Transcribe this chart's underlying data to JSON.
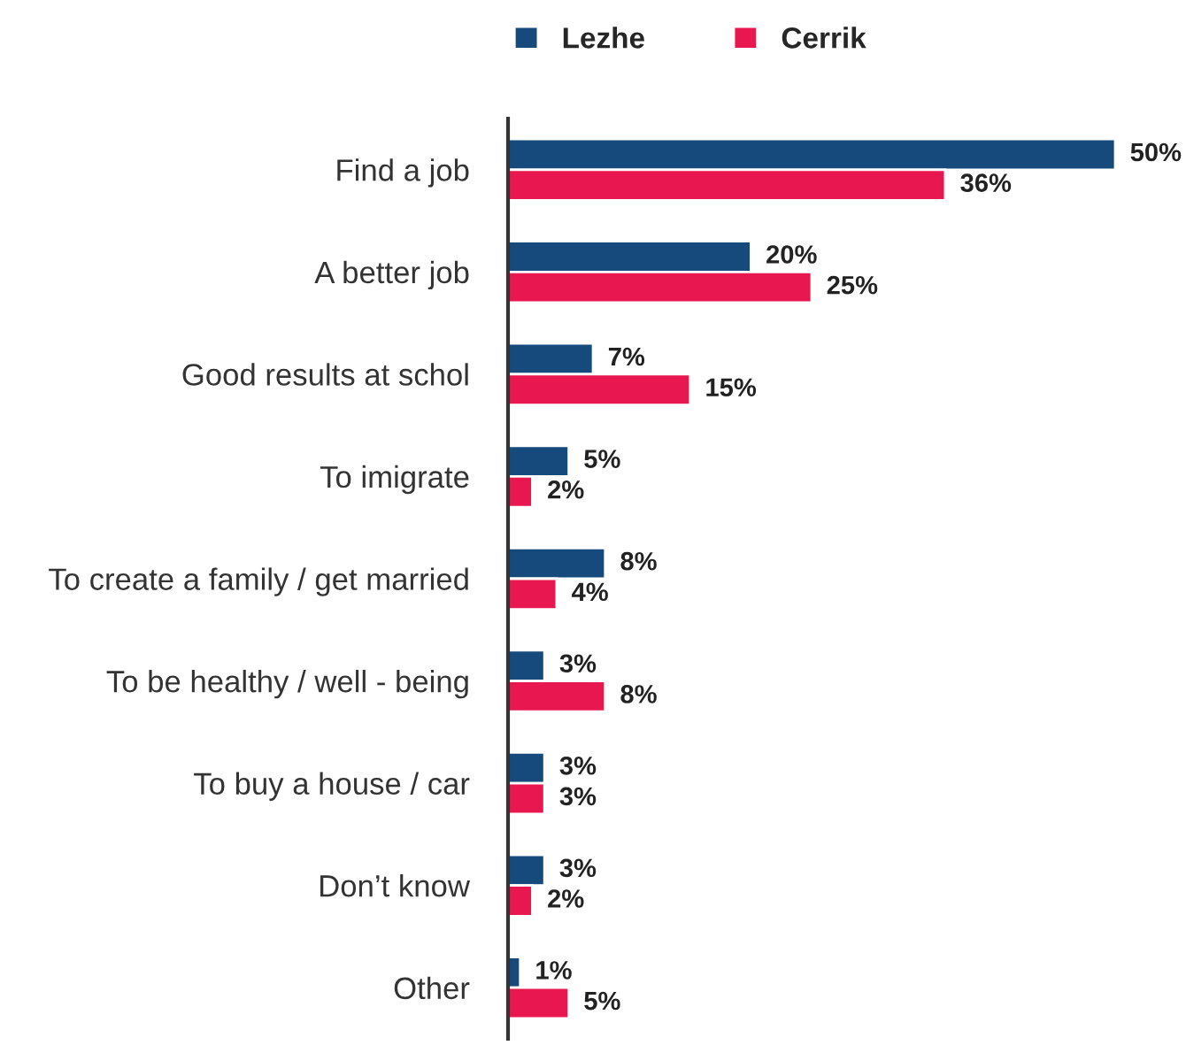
{
  "chart_data": {
    "type": "bar",
    "orientation": "horizontal",
    "categories": [
      "Find a job",
      "A better job",
      "Good results at schol",
      "To imigrate",
      "To create a family / get married",
      "To be healthy / well - being",
      "To buy a house / car",
      "Don’t know",
      "Other"
    ],
    "series": [
      {
        "name": "Lezhe",
        "color": "#174a7c",
        "values": [
          50,
          20,
          7,
          5,
          8,
          3,
          3,
          3,
          1
        ],
        "value_labels": [
          "50%",
          "20%",
          "7%",
          "5%",
          "8%",
          "3%",
          "3%",
          "3%",
          "1%"
        ]
      },
      {
        "name": "Cerrik",
        "color": "#e8174f",
        "values": [
          36,
          25,
          15,
          2,
          4,
          8,
          3,
          2,
          5
        ],
        "value_labels": [
          "36%",
          "25%",
          "15%",
          "2%",
          "4%",
          "8%",
          "3%",
          "2%",
          "5%"
        ]
      }
    ],
    "xlim": [
      0,
      50
    ],
    "tick_labels": "y",
    "legend": "top",
    "grid": false
  }
}
